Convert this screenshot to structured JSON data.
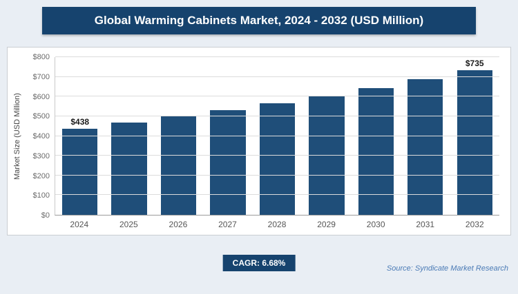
{
  "header": {
    "title": "Global Warming Cabinets Market, 2024 - 2032 (USD Million)"
  },
  "chart_data": {
    "type": "bar",
    "title": "Global Warming Cabinets Market, 2024 - 2032 (USD Million)",
    "categories": [
      "2024",
      "2025",
      "2026",
      "2027",
      "2028",
      "2029",
      "2030",
      "2031",
      "2032"
    ],
    "values": [
      438,
      467,
      498,
      531,
      566,
      604,
      644,
      687,
      735
    ],
    "bar_labels": [
      "$438",
      "",
      "",
      "",
      "",
      "",
      "",
      "",
      "$735"
    ],
    "xlabel": "",
    "ylabel": "Market Size (USD Million)",
    "ylim": [
      0,
      800
    ],
    "ytick_step": 100,
    "ytick_labels": [
      "$0",
      "$100",
      "$200",
      "$300",
      "$400",
      "$500",
      "$600",
      "$700",
      "$800"
    ],
    "grid": true,
    "legend": "none",
    "bar_color": "#1f4e79"
  },
  "footer": {
    "cagr_label": "CAGR: 6.68%",
    "source": "Source: Syndicate Market Research"
  },
  "colors": {
    "banner_bg": "#16436e",
    "bar_fill": "#1f4e79",
    "badge_bg": "#16436e",
    "source_text": "#4a7ab5",
    "page_bg": "#e9eef4",
    "gridline": "#dcdcdc"
  }
}
